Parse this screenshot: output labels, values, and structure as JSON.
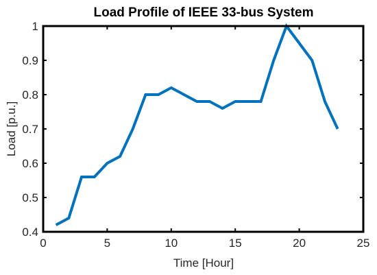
{
  "chart_data": {
    "type": "line",
    "title": "Load Profile of IEEE 33-bus System",
    "xlabel": "Time [Hour]",
    "ylabel": "Load [p.u.]",
    "xlim": [
      0,
      25
    ],
    "ylim": [
      0.4,
      1.0
    ],
    "xticks": [
      0,
      5,
      10,
      15,
      20,
      25
    ],
    "yticks": [
      0.4,
      0.5,
      0.6,
      0.7,
      0.8,
      0.9,
      1.0
    ],
    "xtick_labels": [
      "0",
      "5",
      "10",
      "15",
      "20",
      "25"
    ],
    "ytick_labels": [
      "0.4",
      "0.5",
      "0.6",
      "0.7",
      "0.8",
      "0.9",
      "1"
    ],
    "grid": false,
    "line_color": "#0072BD",
    "series": [
      {
        "x": [
          1,
          2,
          3,
          4,
          5,
          6,
          7,
          8,
          9,
          10,
          11,
          12,
          13,
          14,
          15,
          16,
          17,
          18,
          19,
          20,
          21,
          22,
          23
        ],
        "y": [
          0.42,
          0.44,
          0.56,
          0.56,
          0.6,
          0.62,
          0.7,
          0.8,
          0.8,
          0.82,
          0.8,
          0.78,
          0.78,
          0.76,
          0.78,
          0.78,
          0.78,
          0.9,
          1.0,
          0.95,
          0.9,
          0.78,
          0.7
        ]
      }
    ]
  }
}
